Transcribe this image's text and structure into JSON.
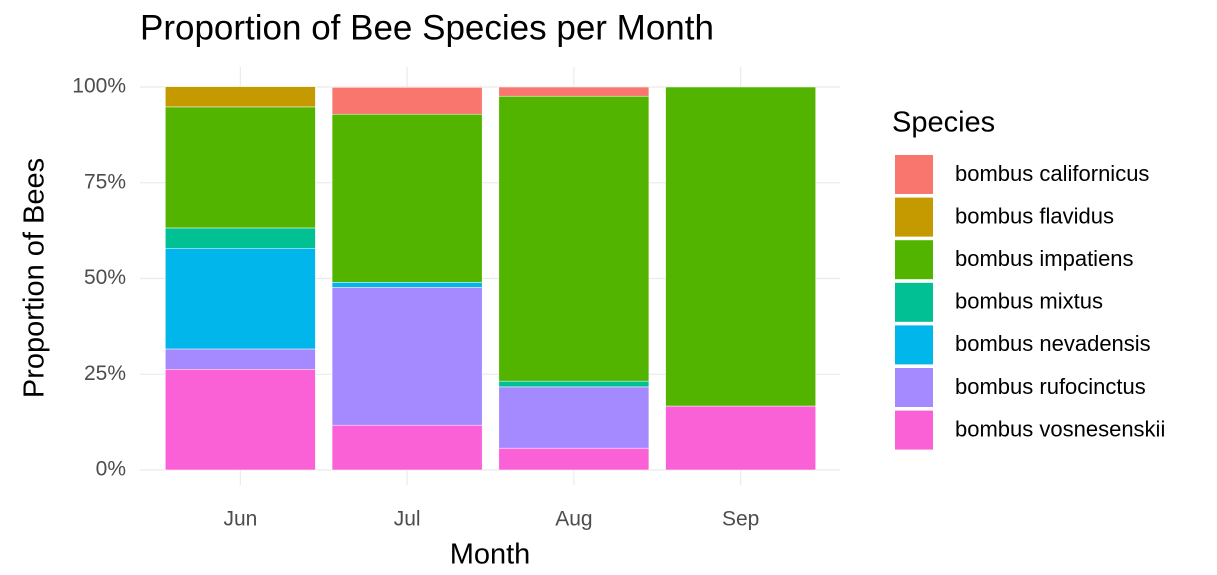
{
  "chart_data": {
    "type": "stacked_bar",
    "title": "Proportion of Bee Species per Month",
    "x_label": "Month",
    "y_label": "Proportion of Bees",
    "legend_title": "Species",
    "categories": [
      "Jun",
      "Jul",
      "Aug",
      "Sep"
    ],
    "series": [
      {
        "name": "bombus californicus",
        "color": "#F8766D",
        "values": [
          0,
          7,
          2.4,
          0
        ]
      },
      {
        "name": "bombus flavidus",
        "color": "#C49A00",
        "values": [
          5.3,
          0,
          0,
          0
        ]
      },
      {
        "name": "bombus impatiens",
        "color": "#53B400",
        "values": [
          31.6,
          43.9,
          74.4,
          83.3
        ]
      },
      {
        "name": "bombus mixtus",
        "color": "#00C094",
        "values": [
          5.3,
          0,
          1.5,
          0
        ]
      },
      {
        "name": "bombus nevadensis",
        "color": "#00B6EB",
        "values": [
          26.3,
          1.3,
          0,
          0
        ]
      },
      {
        "name": "bombus rufocinctus",
        "color": "#A58AFF",
        "values": [
          5.3,
          36,
          16,
          0
        ]
      },
      {
        "name": "bombus vosnesenskii",
        "color": "#FB61D7",
        "values": [
          26.3,
          11.7,
          5.7,
          16.7
        ]
      }
    ],
    "ylim": [
      0,
      100
    ],
    "yticks": [
      {
        "value": 0,
        "label": "0%"
      },
      {
        "value": 25,
        "label": "25%"
      },
      {
        "value": 50,
        "label": "50%"
      },
      {
        "value": 75,
        "label": "75%"
      },
      {
        "value": 100,
        "label": "100%"
      }
    ],
    "grid": true,
    "legend": "right"
  }
}
